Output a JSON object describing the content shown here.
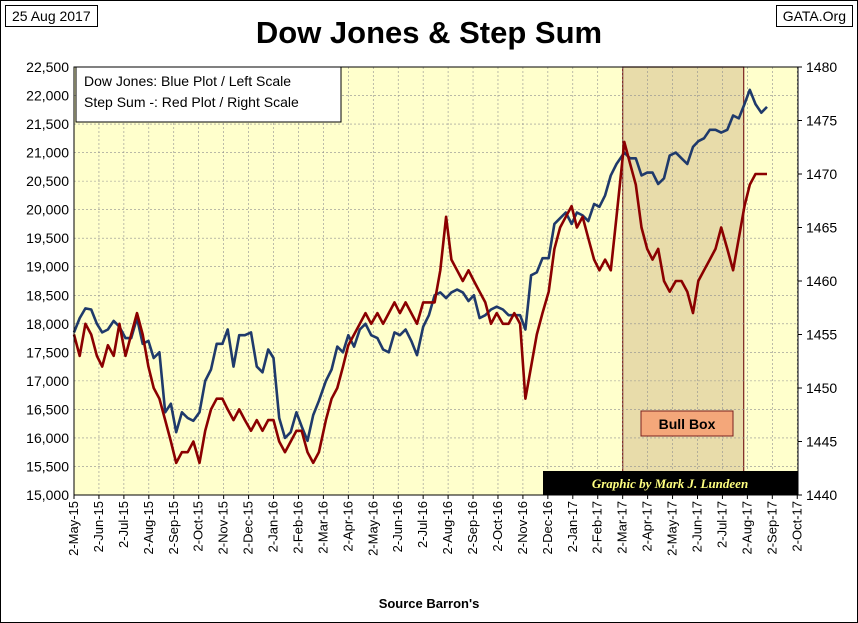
{
  "header": {
    "date": "25 Aug 2017",
    "source_site": "GATA.Org",
    "title": "Dow Jones & Step Sum"
  },
  "legend": {
    "line1": "Dow Jones: Blue Plot / Left Scale",
    "line2": "Step Sum -: Red Plot / Right Scale"
  },
  "annotations": {
    "bull_box_label": "Bull Box",
    "credit": "Graphic by Mark J. Lundeen"
  },
  "xlabel": "Source Barron's",
  "colors": {
    "plot_background": "#ffffcc",
    "dow_line": "#1f3a6b",
    "step_sum_line": "#8b0000",
    "bull_box_fill": "#e8dcaa",
    "bull_box_border": "#7a2020",
    "bull_label_fill": "#f4a77a",
    "credit_fill": "#000000",
    "credit_text": "#ffff80",
    "grid": "#909090"
  },
  "chart_data": {
    "type": "line",
    "title": "Dow Jones & Step Sum",
    "xlabel": "Source Barron's",
    "x_ticks": [
      "2-May-15",
      "2-Jun-15",
      "2-Jul-15",
      "2-Aug-15",
      "2-Sep-15",
      "2-Oct-15",
      "2-Nov-15",
      "2-Dec-15",
      "2-Jan-16",
      "2-Feb-16",
      "2-Mar-16",
      "2-Apr-16",
      "2-May-16",
      "2-Jun-16",
      "2-Jul-16",
      "2-Aug-16",
      "2-Sep-16",
      "2-Oct-16",
      "2-Nov-16",
      "2-Dec-16",
      "2-Jan-17",
      "2-Feb-17",
      "2-Mar-17",
      "2-Apr-17",
      "2-May-17",
      "2-Jun-17",
      "2-Jul-17",
      "2-Aug-17",
      "2-Sep-17",
      "2-Oct-17"
    ],
    "left_axis": {
      "range": [
        15000,
        22500
      ],
      "ticks": [
        15000,
        15500,
        16000,
        16500,
        17000,
        17500,
        18000,
        18500,
        19000,
        19500,
        20000,
        20500,
        21000,
        21500,
        22000,
        22500
      ],
      "tick_labels": [
        "15,000",
        "15,500",
        "16,000",
        "16,500",
        "17,000",
        "17,500",
        "18,000",
        "18,500",
        "19,000",
        "19,500",
        "20,000",
        "20,500",
        "21,000",
        "21,500",
        "22,000",
        "22,500"
      ]
    },
    "right_axis": {
      "range": [
        1440,
        1480
      ],
      "ticks": [
        1440,
        1445,
        1450,
        1455,
        1460,
        1465,
        1470,
        1475,
        1480
      ],
      "tick_labels": [
        "1440",
        "1445",
        "1450",
        "1455",
        "1460",
        "1465",
        "1470",
        "1475",
        "1480"
      ]
    },
    "grid": true,
    "legend_position": "top-left",
    "bull_box": {
      "start": "2017-03-01",
      "end": "2017-07-27"
    },
    "series": [
      {
        "name": "Dow Jones",
        "axis": "left",
        "points": [
          [
            "2015-05-01",
            17850
          ],
          [
            "2015-05-08",
            18100
          ],
          [
            "2015-05-15",
            18270
          ],
          [
            "2015-05-22",
            18250
          ],
          [
            "2015-05-29",
            18000
          ],
          [
            "2015-06-05",
            17850
          ],
          [
            "2015-06-12",
            17900
          ],
          [
            "2015-06-19",
            18050
          ],
          [
            "2015-06-26",
            17950
          ],
          [
            "2015-07-03",
            17750
          ],
          [
            "2015-07-10",
            17750
          ],
          [
            "2015-07-17",
            18100
          ],
          [
            "2015-07-24",
            17650
          ],
          [
            "2015-07-31",
            17700
          ],
          [
            "2015-08-07",
            17400
          ],
          [
            "2015-08-14",
            17500
          ],
          [
            "2015-08-21",
            16450
          ],
          [
            "2015-08-28",
            16600
          ],
          [
            "2015-09-04",
            16100
          ],
          [
            "2015-09-11",
            16450
          ],
          [
            "2015-09-18",
            16350
          ],
          [
            "2015-09-25",
            16300
          ],
          [
            "2015-10-02",
            16450
          ],
          [
            "2015-10-09",
            17000
          ],
          [
            "2015-10-16",
            17200
          ],
          [
            "2015-10-23",
            17650
          ],
          [
            "2015-10-30",
            17650
          ],
          [
            "2015-11-06",
            17900
          ],
          [
            "2015-11-13",
            17250
          ],
          [
            "2015-11-20",
            17800
          ],
          [
            "2015-11-27",
            17800
          ],
          [
            "2015-12-04",
            17850
          ],
          [
            "2015-12-11",
            17250
          ],
          [
            "2015-12-18",
            17150
          ],
          [
            "2015-12-25",
            17550
          ],
          [
            "2016-01-01",
            17400
          ],
          [
            "2016-01-08",
            16350
          ],
          [
            "2016-01-15",
            16000
          ],
          [
            "2016-01-22",
            16100
          ],
          [
            "2016-01-29",
            16450
          ],
          [
            "2016-02-05",
            16200
          ],
          [
            "2016-02-12",
            15950
          ],
          [
            "2016-02-19",
            16400
          ],
          [
            "2016-02-26",
            16650
          ],
          [
            "2016-03-04",
            17000
          ],
          [
            "2016-03-11",
            17200
          ],
          [
            "2016-03-18",
            17600
          ],
          [
            "2016-03-25",
            17500
          ],
          [
            "2016-04-01",
            17800
          ],
          [
            "2016-04-08",
            17600
          ],
          [
            "2016-04-15",
            17900
          ],
          [
            "2016-04-22",
            18000
          ],
          [
            "2016-04-29",
            17800
          ],
          [
            "2016-05-06",
            17750
          ],
          [
            "2016-05-13",
            17550
          ],
          [
            "2016-05-20",
            17500
          ],
          [
            "2016-05-27",
            17850
          ],
          [
            "2016-06-03",
            17800
          ],
          [
            "2016-06-10",
            17900
          ],
          [
            "2016-06-17",
            17700
          ],
          [
            "2016-06-24",
            17450
          ],
          [
            "2016-07-01",
            17950
          ],
          [
            "2016-07-08",
            18150
          ],
          [
            "2016-07-15",
            18500
          ],
          [
            "2016-07-22",
            18550
          ],
          [
            "2016-07-29",
            18450
          ],
          [
            "2016-08-05",
            18550
          ],
          [
            "2016-08-12",
            18600
          ],
          [
            "2016-08-19",
            18550
          ],
          [
            "2016-08-26",
            18400
          ],
          [
            "2016-09-02",
            18500
          ],
          [
            "2016-09-09",
            18100
          ],
          [
            "2016-09-16",
            18150
          ],
          [
            "2016-09-23",
            18250
          ],
          [
            "2016-09-30",
            18300
          ],
          [
            "2016-10-07",
            18250
          ],
          [
            "2016-10-14",
            18150
          ],
          [
            "2016-10-21",
            18150
          ],
          [
            "2016-10-28",
            18150
          ],
          [
            "2016-11-04",
            17900
          ],
          [
            "2016-11-11",
            18850
          ],
          [
            "2016-11-18",
            18900
          ],
          [
            "2016-11-25",
            19150
          ],
          [
            "2016-12-02",
            19150
          ],
          [
            "2016-12-09",
            19750
          ],
          [
            "2016-12-16",
            19850
          ],
          [
            "2016-12-23",
            19950
          ],
          [
            "2016-12-30",
            19750
          ],
          [
            "2017-01-06",
            19950
          ],
          [
            "2017-01-13",
            19900
          ],
          [
            "2017-01-20",
            19800
          ],
          [
            "2017-01-27",
            20100
          ],
          [
            "2017-02-03",
            20050
          ],
          [
            "2017-02-10",
            20250
          ],
          [
            "2017-02-17",
            20600
          ],
          [
            "2017-02-24",
            20800
          ],
          [
            "2017-03-03",
            21000
          ],
          [
            "2017-03-10",
            20900
          ],
          [
            "2017-03-17",
            20900
          ],
          [
            "2017-03-24",
            20600
          ],
          [
            "2017-03-31",
            20650
          ],
          [
            "2017-04-07",
            20650
          ],
          [
            "2017-04-14",
            20450
          ],
          [
            "2017-04-21",
            20550
          ],
          [
            "2017-04-28",
            20950
          ],
          [
            "2017-05-05",
            21000
          ],
          [
            "2017-05-12",
            20900
          ],
          [
            "2017-05-19",
            20800
          ],
          [
            "2017-05-26",
            21100
          ],
          [
            "2017-06-02",
            21200
          ],
          [
            "2017-06-09",
            21250
          ],
          [
            "2017-06-16",
            21400
          ],
          [
            "2017-06-23",
            21400
          ],
          [
            "2017-06-30",
            21350
          ],
          [
            "2017-07-07",
            21400
          ],
          [
            "2017-07-14",
            21650
          ],
          [
            "2017-07-21",
            21600
          ],
          [
            "2017-07-28",
            21850
          ],
          [
            "2017-08-04",
            22100
          ],
          [
            "2017-08-11",
            21850
          ],
          [
            "2017-08-18",
            21700
          ],
          [
            "2017-08-25",
            21800
          ]
        ]
      },
      {
        "name": "Step Sum -",
        "axis": "right",
        "points": [
          [
            "2015-05-01",
            1455
          ],
          [
            "2015-05-08",
            1453
          ],
          [
            "2015-05-15",
            1456
          ],
          [
            "2015-05-22",
            1455
          ],
          [
            "2015-05-29",
            1453
          ],
          [
            "2015-06-05",
            1452
          ],
          [
            "2015-06-12",
            1454
          ],
          [
            "2015-06-19",
            1453
          ],
          [
            "2015-06-26",
            1456
          ],
          [
            "2015-07-03",
            1453
          ],
          [
            "2015-07-10",
            1455
          ],
          [
            "2015-07-17",
            1457
          ],
          [
            "2015-07-24",
            1455
          ],
          [
            "2015-07-31",
            1452
          ],
          [
            "2015-08-07",
            1450
          ],
          [
            "2015-08-14",
            1449
          ],
          [
            "2015-08-21",
            1447
          ],
          [
            "2015-08-28",
            1445
          ],
          [
            "2015-09-04",
            1443
          ],
          [
            "2015-09-11",
            1444
          ],
          [
            "2015-09-18",
            1444
          ],
          [
            "2015-09-25",
            1445
          ],
          [
            "2015-10-02",
            1443
          ],
          [
            "2015-10-09",
            1446
          ],
          [
            "2015-10-16",
            1448
          ],
          [
            "2015-10-23",
            1449
          ],
          [
            "2015-10-30",
            1449
          ],
          [
            "2015-11-06",
            1448
          ],
          [
            "2015-11-13",
            1447
          ],
          [
            "2015-11-20",
            1448
          ],
          [
            "2015-11-27",
            1447
          ],
          [
            "2015-12-04",
            1446
          ],
          [
            "2015-12-11",
            1447
          ],
          [
            "2015-12-18",
            1446
          ],
          [
            "2015-12-25",
            1447
          ],
          [
            "2016-01-01",
            1447
          ],
          [
            "2016-01-08",
            1445
          ],
          [
            "2016-01-15",
            1444
          ],
          [
            "2016-01-22",
            1445
          ],
          [
            "2016-01-29",
            1446
          ],
          [
            "2016-02-05",
            1446
          ],
          [
            "2016-02-12",
            1444
          ],
          [
            "2016-02-19",
            1443
          ],
          [
            "2016-02-26",
            1444
          ],
          [
            "2016-03-04",
            1447
          ],
          [
            "2016-03-11",
            1449
          ],
          [
            "2016-03-18",
            1450
          ],
          [
            "2016-03-25",
            1452
          ],
          [
            "2016-04-01",
            1454
          ],
          [
            "2016-04-08",
            1455
          ],
          [
            "2016-04-15",
            1456
          ],
          [
            "2016-04-22",
            1457
          ],
          [
            "2016-04-29",
            1456
          ],
          [
            "2016-05-06",
            1457
          ],
          [
            "2016-05-13",
            1456
          ],
          [
            "2016-05-20",
            1457
          ],
          [
            "2016-05-27",
            1458
          ],
          [
            "2016-06-03",
            1457
          ],
          [
            "2016-06-10",
            1458
          ],
          [
            "2016-06-17",
            1457
          ],
          [
            "2016-06-24",
            1456
          ],
          [
            "2016-07-01",
            1458
          ],
          [
            "2016-07-08",
            1458
          ],
          [
            "2016-07-15",
            1458
          ],
          [
            "2016-07-22",
            1461
          ],
          [
            "2016-07-29",
            1466
          ],
          [
            "2016-08-05",
            1462
          ],
          [
            "2016-08-12",
            1461
          ],
          [
            "2016-08-19",
            1460
          ],
          [
            "2016-08-26",
            1461
          ],
          [
            "2016-09-02",
            1460
          ],
          [
            "2016-09-09",
            1459
          ],
          [
            "2016-09-16",
            1458
          ],
          [
            "2016-09-23",
            1456
          ],
          [
            "2016-09-30",
            1457
          ],
          [
            "2016-10-07",
            1456
          ],
          [
            "2016-10-14",
            1456
          ],
          [
            "2016-10-21",
            1457
          ],
          [
            "2016-10-28",
            1456
          ],
          [
            "2016-11-04",
            1449
          ],
          [
            "2016-11-11",
            1452
          ],
          [
            "2016-11-18",
            1455
          ],
          [
            "2016-11-25",
            1457
          ],
          [
            "2016-12-02",
            1459
          ],
          [
            "2016-12-09",
            1463
          ],
          [
            "2016-12-16",
            1465
          ],
          [
            "2016-12-23",
            1466
          ],
          [
            "2016-12-30",
            1467
          ],
          [
            "2017-01-06",
            1465
          ],
          [
            "2017-01-13",
            1466
          ],
          [
            "2017-01-20",
            1464
          ],
          [
            "2017-01-27",
            1462
          ],
          [
            "2017-02-03",
            1461
          ],
          [
            "2017-02-10",
            1462
          ],
          [
            "2017-02-17",
            1461
          ],
          [
            "2017-02-24",
            1466
          ],
          [
            "2017-03-03",
            1473
          ],
          [
            "2017-03-10",
            1471
          ],
          [
            "2017-03-17",
            1469
          ],
          [
            "2017-03-24",
            1465
          ],
          [
            "2017-03-31",
            1463
          ],
          [
            "2017-04-07",
            1462
          ],
          [
            "2017-04-14",
            1463
          ],
          [
            "2017-04-21",
            1460
          ],
          [
            "2017-04-28",
            1459
          ],
          [
            "2017-05-05",
            1460
          ],
          [
            "2017-05-12",
            1460
          ],
          [
            "2017-05-19",
            1459
          ],
          [
            "2017-05-26",
            1457
          ],
          [
            "2017-06-02",
            1460
          ],
          [
            "2017-06-09",
            1461
          ],
          [
            "2017-06-16",
            1462
          ],
          [
            "2017-06-23",
            1463
          ],
          [
            "2017-06-30",
            1465
          ],
          [
            "2017-07-07",
            1463
          ],
          [
            "2017-07-14",
            1461
          ],
          [
            "2017-07-21",
            1464
          ],
          [
            "2017-07-28",
            1467
          ],
          [
            "2017-08-04",
            1469
          ],
          [
            "2017-08-11",
            1470
          ],
          [
            "2017-08-18",
            1470
          ],
          [
            "2017-08-25",
            1470
          ]
        ]
      }
    ]
  }
}
